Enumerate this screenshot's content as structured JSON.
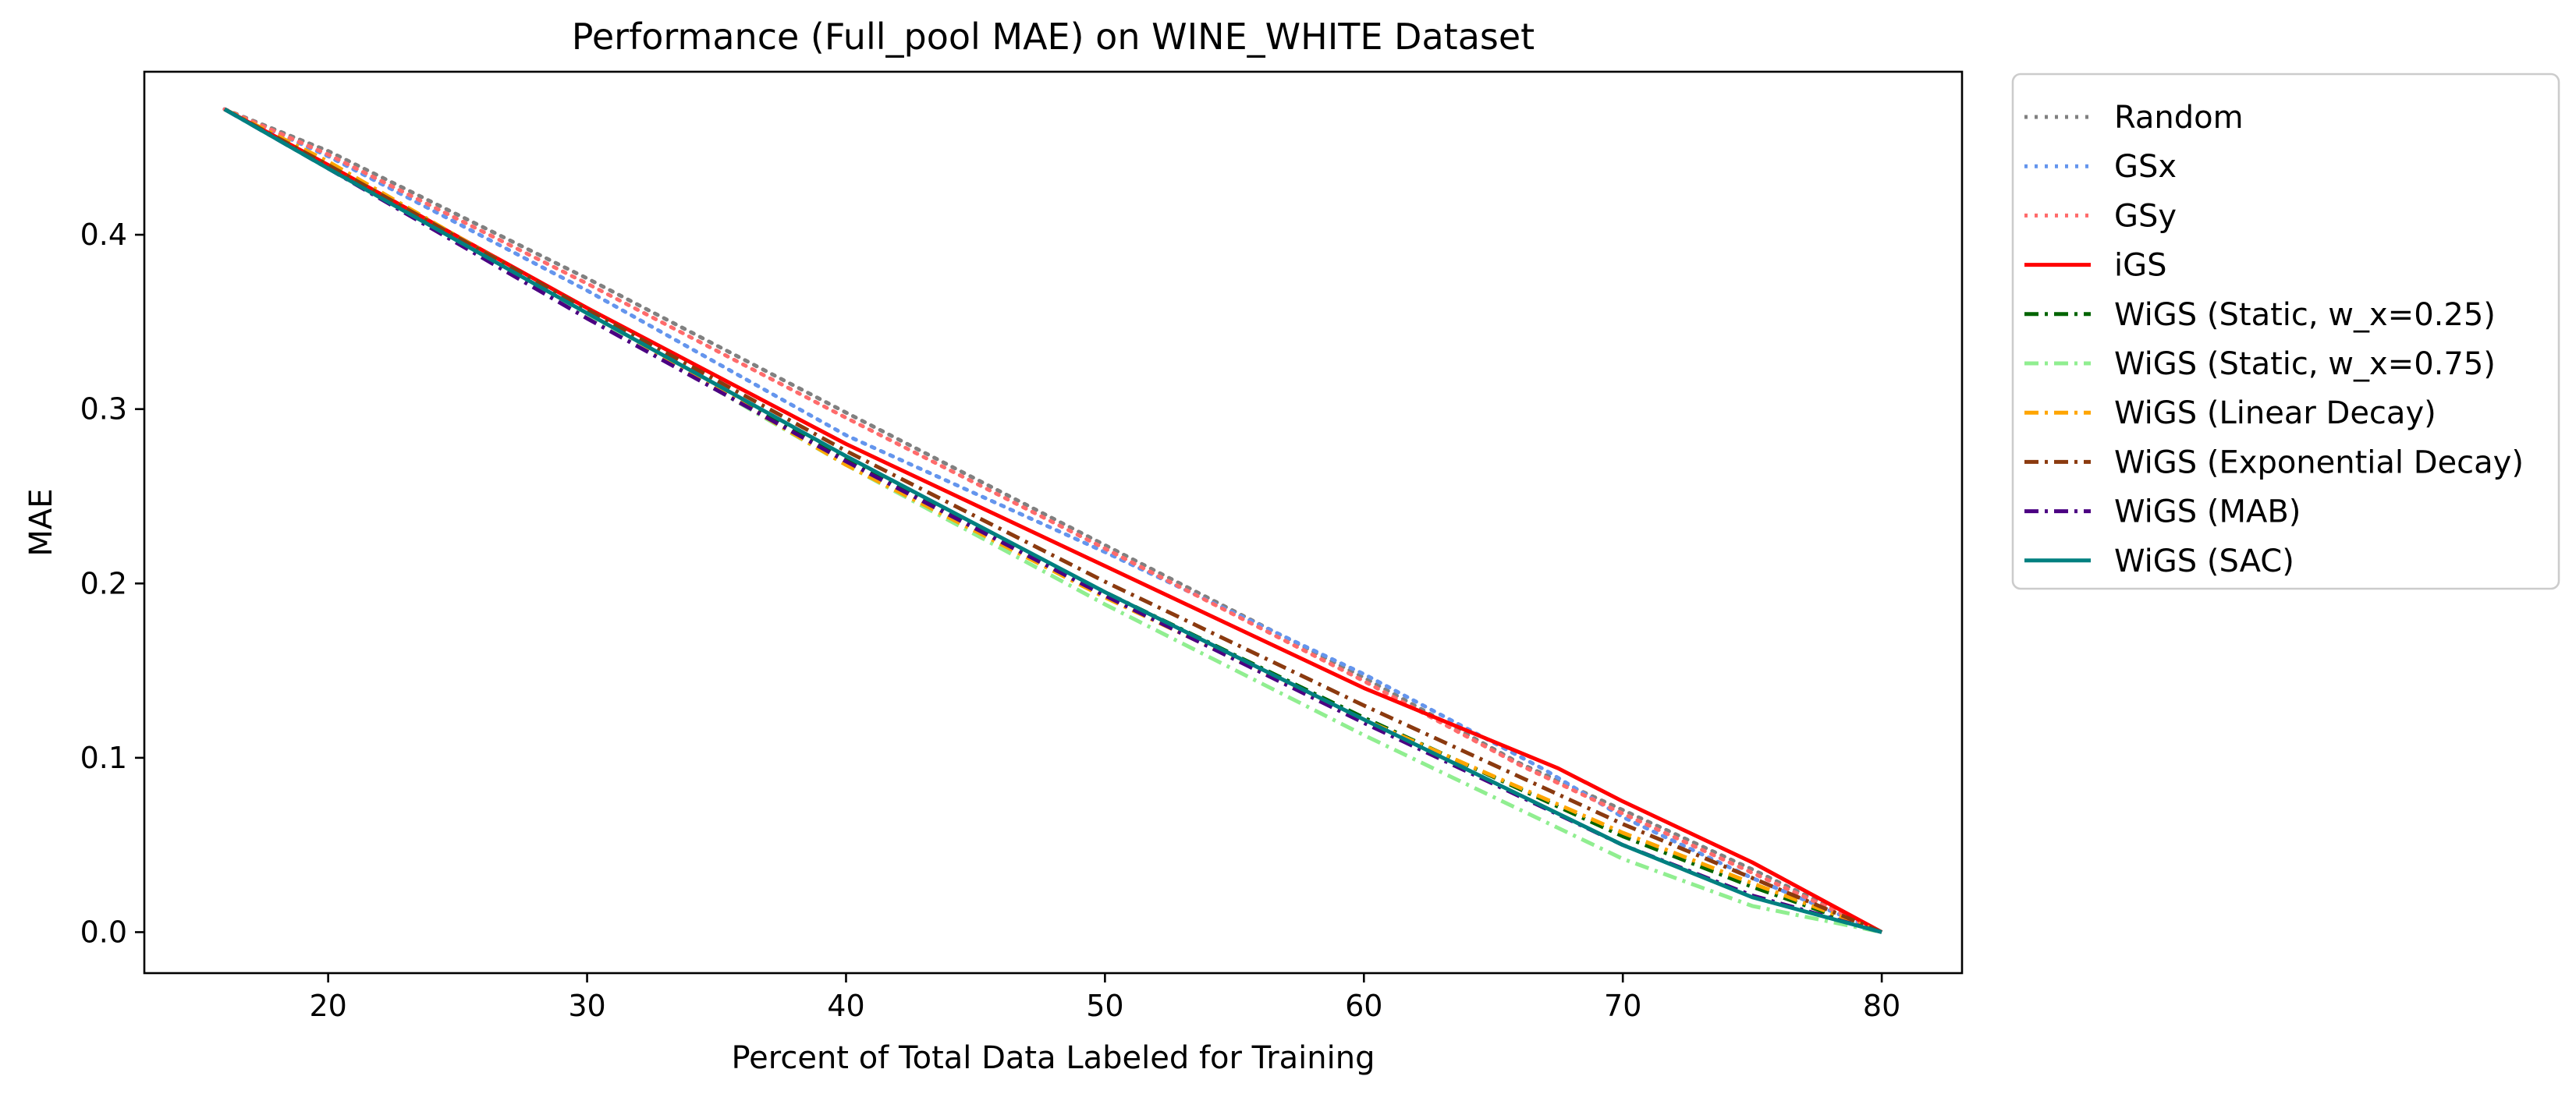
{
  "chart_data": {
    "type": "line",
    "title": "Performance (Full_pool MAE) on WINE_WHITE Dataset",
    "xlabel": "Percent of Total Data Labeled for Training",
    "ylabel": "MAE",
    "xlim": [
      12.9,
      83.1
    ],
    "ylim": [
      -0.0235,
      0.4935
    ],
    "xticks": [
      20,
      30,
      40,
      50,
      60,
      70,
      80
    ],
    "xtick_labels": [
      "20",
      "30",
      "40",
      "50",
      "60",
      "70",
      "80"
    ],
    "yticks": [
      0.0,
      0.1,
      0.2,
      0.3,
      0.4
    ],
    "ytick_labels": [
      "0.0",
      "0.1",
      "0.2",
      "0.3",
      "0.4"
    ],
    "grid": false,
    "legend_position": "outside-right-top",
    "series": [
      {
        "name": "Random",
        "color": "#808080",
        "dash": "dotted",
        "x": [
          16,
          20,
          30,
          40,
          50,
          60,
          66,
          70,
          75,
          80
        ],
        "y": [
          0.472,
          0.448,
          0.375,
          0.298,
          0.222,
          0.146,
          0.097,
          0.07,
          0.036,
          0.0
        ]
      },
      {
        "name": "GSx",
        "color": "#6495ED",
        "dash": "dotted",
        "x": [
          16,
          20,
          30,
          40,
          50,
          60,
          67,
          70,
          75,
          80
        ],
        "y": [
          0.472,
          0.445,
          0.368,
          0.285,
          0.218,
          0.148,
          0.093,
          0.066,
          0.031,
          0.0
        ]
      },
      {
        "name": "GSy",
        "color": "#FF6B6B",
        "dash": "dotted",
        "x": [
          16,
          20,
          30,
          40,
          50,
          60,
          66,
          70,
          75,
          80
        ],
        "y": [
          0.472,
          0.446,
          0.372,
          0.295,
          0.22,
          0.144,
          0.096,
          0.068,
          0.034,
          0.0
        ]
      },
      {
        "name": "iGS",
        "color": "#FF0000",
        "dash": "solid",
        "x": [
          16,
          20,
          30,
          40,
          50,
          60,
          67.5,
          70,
          75,
          80
        ],
        "y": [
          0.472,
          0.44,
          0.358,
          0.28,
          0.21,
          0.14,
          0.094,
          0.075,
          0.04,
          0.0
        ]
      },
      {
        "name": "WiGS (Static, w_x=0.25)",
        "color": "#006400",
        "dash": "dashdot",
        "x": [
          16,
          20,
          30,
          40,
          50,
          60,
          70,
          75,
          80
        ],
        "y": [
          0.472,
          0.439,
          0.355,
          0.272,
          0.195,
          0.123,
          0.055,
          0.026,
          0.0
        ]
      },
      {
        "name": "WiGS (Static, w_x=0.75)",
        "color": "#90EE90",
        "dash": "dashdot",
        "x": [
          16,
          20,
          30,
          40,
          50,
          60,
          70,
          75,
          80
        ],
        "y": [
          0.472,
          0.439,
          0.354,
          0.268,
          0.188,
          0.113,
          0.042,
          0.015,
          0.0
        ]
      },
      {
        "name": "WiGS (Linear Decay)",
        "color": "#FFA500",
        "dash": "dashdot",
        "x": [
          16,
          20,
          30,
          40,
          50,
          60,
          70,
          75,
          80
        ],
        "y": [
          0.472,
          0.442,
          0.356,
          0.268,
          0.192,
          0.122,
          0.057,
          0.028,
          0.0
        ]
      },
      {
        "name": "WiGS (Exponential Decay)",
        "color": "#8B3A0F",
        "dash": "dashdot",
        "x": [
          16,
          20,
          30,
          40,
          50,
          60,
          70,
          75,
          80
        ],
        "y": [
          0.472,
          0.44,
          0.357,
          0.276,
          0.201,
          0.13,
          0.062,
          0.031,
          0.0
        ]
      },
      {
        "name": "WiGS (MAB)",
        "color": "#4B0082",
        "dash": "dashdot",
        "x": [
          16,
          20,
          30,
          40,
          50,
          60,
          70,
          75,
          80
        ],
        "y": [
          0.472,
          0.438,
          0.352,
          0.27,
          0.193,
          0.12,
          0.05,
          0.021,
          0.0
        ]
      },
      {
        "name": "WiGS (SAC)",
        "color": "#008080",
        "dash": "solid",
        "x": [
          16,
          20,
          30,
          40,
          50,
          60,
          70,
          75,
          80
        ],
        "y": [
          0.472,
          0.438,
          0.355,
          0.273,
          0.195,
          0.122,
          0.05,
          0.02,
          0.0
        ]
      }
    ]
  }
}
